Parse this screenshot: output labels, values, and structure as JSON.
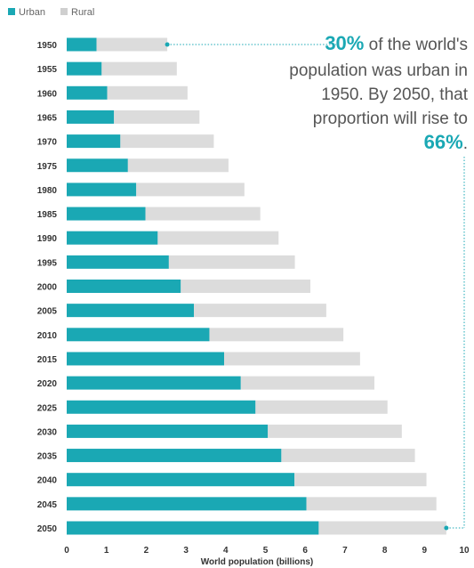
{
  "colors": {
    "urban": "#1aa8b4",
    "rural": "#dcdcdc",
    "accent": "#1aa8b4"
  },
  "legend": {
    "urban": "Urban",
    "rural": "Rural"
  },
  "annotation": {
    "line1_strong": "30%",
    "line1_rest": " of the world's",
    "line2": "population was urban in",
    "line3": "1950. By 2050, that",
    "line4": "proportion will rise to",
    "line5_strong": "66%",
    "line5_rest": "."
  },
  "chart_data": {
    "type": "bar",
    "orientation": "horizontal",
    "stacked": true,
    "title": "",
    "xlabel": "World population (billions)",
    "ylabel": "",
    "xlim": [
      0,
      10
    ],
    "xticks": [
      "0",
      "1",
      "2",
      "3",
      "4",
      "5",
      "6",
      "7",
      "8",
      "9",
      "10"
    ],
    "grid": false,
    "legend_position": "top-left",
    "categories": [
      "1950",
      "1955",
      "1960",
      "1965",
      "1970",
      "1975",
      "1980",
      "1985",
      "1990",
      "1995",
      "2000",
      "2005",
      "2010",
      "2015",
      "2020",
      "2025",
      "2030",
      "2035",
      "2040",
      "2045",
      "2050"
    ],
    "series": [
      {
        "name": "Urban",
        "values": [
          0.75,
          0.88,
          1.02,
          1.19,
          1.35,
          1.54,
          1.75,
          1.98,
          2.29,
          2.57,
          2.87,
          3.2,
          3.59,
          3.96,
          4.38,
          4.75,
          5.06,
          5.4,
          5.73,
          6.03,
          6.34
        ]
      },
      {
        "name": "Rural",
        "values": [
          1.78,
          1.89,
          2.02,
          2.15,
          2.35,
          2.53,
          2.72,
          2.89,
          3.04,
          3.17,
          3.26,
          3.33,
          3.37,
          3.42,
          3.36,
          3.32,
          3.37,
          3.36,
          3.32,
          3.27,
          3.21
        ]
      }
    ]
  }
}
